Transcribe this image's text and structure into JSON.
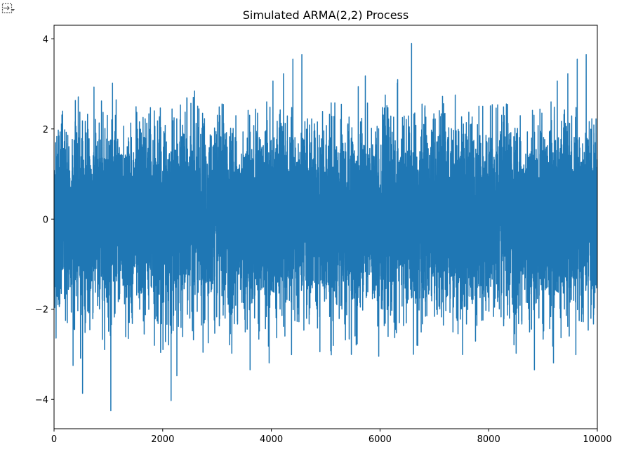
{
  "toolbar": {
    "toggle_icon": "output-toggle-icon"
  },
  "chart_data": {
    "type": "line",
    "title": "Simulated ARMA(2,2) Process",
    "xlabel": "",
    "ylabel": "",
    "xlim": [
      0,
      10000
    ],
    "ylim": [
      -4.65,
      4.3
    ],
    "x_ticks": [
      0,
      2000,
      4000,
      6000,
      8000,
      10000
    ],
    "x_tick_labels": [
      "0",
      "2000",
      "4000",
      "6000",
      "8000",
      "10000"
    ],
    "y_ticks": [
      4,
      2,
      0,
      -2,
      -4
    ],
    "y_tick_labels": [
      "4",
      "2",
      "0",
      "−2",
      "−4"
    ],
    "grid": false,
    "line_color": "#1f77b4",
    "series": [
      {
        "n_points": 10000,
        "y_range": [
          -4.28,
          3.9
        ]
      }
    ]
  }
}
